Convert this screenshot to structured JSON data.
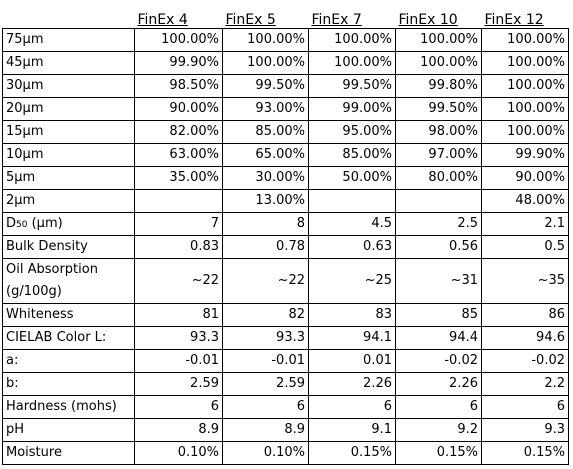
{
  "table": {
    "headers": [
      "",
      "FinEx 4",
      "FinEx 5",
      "FinEx 7",
      "FinEx 10",
      "FinEx 12"
    ],
    "rows": [
      {
        "label": "75µm",
        "values": [
          "100.00%",
          "100.00%",
          "100.00%",
          "100.00%",
          "100.00%"
        ]
      },
      {
        "label": "45µm",
        "values": [
          "99.90%",
          "100.00%",
          "100.00%",
          "100.00%",
          "100.00%"
        ]
      },
      {
        "label": "30µm",
        "values": [
          "98.50%",
          "99.50%",
          "99.50%",
          "99.80%",
          "100.00%"
        ]
      },
      {
        "label": "20µm",
        "values": [
          "90.00%",
          "93.00%",
          "99.00%",
          "99.50%",
          "100.00%"
        ]
      },
      {
        "label": "15µm",
        "values": [
          "82.00%",
          "85.00%",
          "95.00%",
          "98.00%",
          "100.00%"
        ]
      },
      {
        "label": "10µm",
        "values": [
          "63.00%",
          "65.00%",
          "85.00%",
          "97.00%",
          "99.90%"
        ]
      },
      {
        "label": "5µm",
        "values": [
          "35.00%",
          "30.00%",
          "50.00%",
          "80.00%",
          "90.00%"
        ]
      },
      {
        "label": "2µm",
        "values": [
          "",
          "13.00%",
          "",
          "",
          "48.00%"
        ]
      },
      {
        "label_main": "D",
        "label_sub": "50",
        "label_rest": " (µm)",
        "values": [
          "7",
          "8",
          "4.5",
          "2.5",
          "2.1"
        ]
      },
      {
        "label": "Bulk Density",
        "values": [
          "0.83",
          "0.78",
          "0.63",
          "0.56",
          "0.5"
        ]
      },
      {
        "label": "Oil Absorption (g/100g)",
        "values": [
          "~22",
          "~22",
          "~25",
          "~31",
          "~35"
        ]
      },
      {
        "label": "Whiteness",
        "values": [
          "81",
          "82",
          "83",
          "85",
          "86"
        ]
      },
      {
        "label": "CIELAB Color L:",
        "values": [
          "93.3",
          "93.3",
          "94.1",
          "94.4",
          "94.6"
        ]
      },
      {
        "label": "a:",
        "values": [
          "-0.01",
          "-0.01",
          "0.01",
          "-0.02",
          "-0.02"
        ]
      },
      {
        "label": "b:",
        "values": [
          "2.59",
          "2.59",
          "2.26",
          "2.26",
          "2.2"
        ]
      },
      {
        "label": "Hardness (mohs)",
        "values": [
          "6",
          "6",
          "6",
          "6",
          "6"
        ]
      },
      {
        "label": "pH",
        "values": [
          "8.9",
          "8.9",
          "9.1",
          "9.2",
          "9.3"
        ]
      },
      {
        "label": "Moisture",
        "values": [
          "0.10%",
          "0.10%",
          "0.15%",
          "0.15%",
          "0.15%"
        ]
      }
    ]
  }
}
